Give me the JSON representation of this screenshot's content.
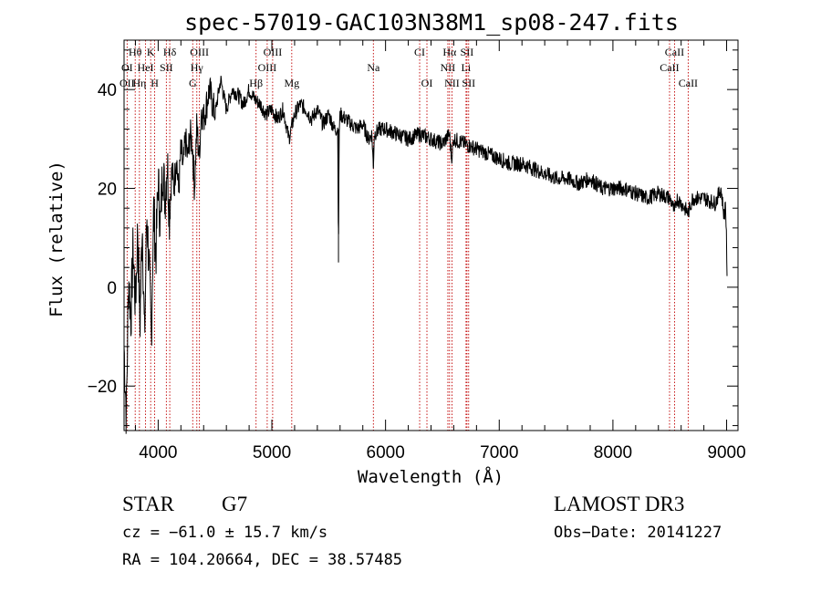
{
  "chart_data": {
    "type": "line",
    "title": "spec-57019-GAC103N38M1_sp08-247.fits",
    "xlabel": "Wavelength (Å)",
    "ylabel": "Flux (relative)",
    "xlim": [
      3700,
      9100
    ],
    "ylim": [
      -29,
      50
    ],
    "x_ticks": [
      4000,
      5000,
      6000,
      7000,
      8000,
      9000
    ],
    "x_tick_labels": [
      "4000",
      "5000",
      "6000",
      "7000",
      "8000",
      "9000"
    ],
    "y_ticks": [
      -20,
      0,
      20,
      40
    ],
    "y_tick_labels": [
      "−20",
      "0",
      "20",
      "40"
    ],
    "series": [
      {
        "name": "spectrum",
        "x": [
          3700,
          3720,
          3740,
          3760,
          3780,
          3800,
          3820,
          3840,
          3860,
          3880,
          3900,
          3920,
          3940,
          3960,
          3980,
          4000,
          4020,
          4040,
          4060,
          4080,
          4100,
          4120,
          4140,
          4160,
          4180,
          4200,
          4220,
          4240,
          4260,
          4280,
          4300,
          4320,
          4340,
          4360,
          4380,
          4400,
          4450,
          4500,
          4550,
          4600,
          4650,
          4700,
          4750,
          4800,
          4850,
          4900,
          4950,
          5000,
          5050,
          5100,
          5150,
          5180,
          5200,
          5250,
          5300,
          5350,
          5400,
          5450,
          5500,
          5550,
          5580,
          5586,
          5592,
          5600,
          5650,
          5700,
          5750,
          5800,
          5850,
          5880,
          5893,
          5900,
          5950,
          6000,
          6100,
          6200,
          6300,
          6400,
          6500,
          6563,
          6580,
          6600,
          6700,
          6800,
          6900,
          7000,
          7100,
          7200,
          7300,
          7400,
          7500,
          7600,
          7700,
          7800,
          7900,
          8000,
          8100,
          8200,
          8300,
          8400,
          8498,
          8520,
          8542,
          8560,
          8600,
          8662,
          8700,
          8800,
          8900,
          8950,
          8980,
          8990,
          9000,
          9005
        ],
        "y": [
          -12,
          -26,
          2,
          -6,
          8,
          -4,
          12,
          -8,
          14,
          -11,
          15,
          4,
          -10,
          16,
          6,
          22,
          12,
          25,
          18,
          26,
          14,
          24,
          20,
          27,
          19,
          28,
          24,
          30,
          26,
          31,
          29,
          20,
          33,
          26,
          36,
          34,
          40,
          35,
          42,
          36,
          40,
          39,
          37,
          40,
          38,
          37,
          35,
          36,
          34,
          36,
          30,
          33,
          35,
          37,
          36,
          34,
          36,
          33,
          35,
          32,
          32,
          5,
          31,
          35,
          34,
          33,
          32,
          33,
          30,
          31,
          24,
          31,
          32,
          32,
          31,
          30,
          31,
          30,
          29,
          31,
          26,
          30,
          29,
          28,
          27,
          26,
          25,
          25,
          24,
          23,
          22,
          22,
          21,
          22,
          20,
          20,
          20,
          19,
          18,
          19,
          18,
          17,
          15,
          18,
          17,
          15,
          18,
          18,
          17,
          20,
          14,
          18,
          8,
          -1
        ]
      }
    ],
    "spectral_lines": [
      {
        "label": "Hθ",
        "x": 3798,
        "row": 1
      },
      {
        "label": "K",
        "x": 3934,
        "row": 1
      },
      {
        "label": "Hδ",
        "x": 4102,
        "row": 1
      },
      {
        "label": "OIII",
        "x": 4363,
        "row": 1
      },
      {
        "label": "OIII",
        "x": 5007,
        "row": 1
      },
      {
        "label": "CI",
        "x": 6300,
        "row": 1
      },
      {
        "label": "Hα",
        "x": 6563,
        "row": 1
      },
      {
        "label": "SII",
        "x": 6716,
        "row": 1
      },
      {
        "label": "CaII",
        "x": 8542,
        "row": 1
      },
      {
        "label": "OI",
        "x": 3727,
        "row": 2
      },
      {
        "label": "HeI",
        "x": 3889,
        "row": 2
      },
      {
        "label": "SII",
        "x": 4072,
        "row": 2
      },
      {
        "label": "Hγ",
        "x": 4340,
        "row": 2
      },
      {
        "label": "OIII",
        "x": 4959,
        "row": 2
      },
      {
        "label": "Na",
        "x": 5893,
        "row": 2
      },
      {
        "label": "NII",
        "x": 6548,
        "row": 2
      },
      {
        "label": "Li",
        "x": 6708,
        "row": 2
      },
      {
        "label": "CaII",
        "x": 8498,
        "row": 2
      },
      {
        "label": "OII",
        "x": 3727,
        "row": 3
      },
      {
        "label": "Hη",
        "x": 3835,
        "row": 3
      },
      {
        "label": "H",
        "x": 3969,
        "row": 3
      },
      {
        "label": "G",
        "x": 4304,
        "row": 3
      },
      {
        "label": "Hβ",
        "x": 4861,
        "row": 3
      },
      {
        "label": "Mg",
        "x": 5175,
        "row": 3
      },
      {
        "label": "OI",
        "x": 6364,
        "row": 3
      },
      {
        "label": "NII",
        "x": 6584,
        "row": 3
      },
      {
        "label": "SII",
        "x": 6731,
        "row": 3
      },
      {
        "label": "CaII",
        "x": 8662,
        "row": 3
      }
    ]
  },
  "info": {
    "object_class": "STAR",
    "subclass": "G7",
    "cz": "cz = −61.0 ± 15.7 km/s",
    "coords": "RA = 104.20664, DEC =  38.57485",
    "survey": "LAMOST DR3",
    "obs_date": "Obs−Date: 20141227"
  },
  "colors": {
    "spectrum": "#000000",
    "line_marker": "#c00000",
    "axes": "#000000"
  }
}
